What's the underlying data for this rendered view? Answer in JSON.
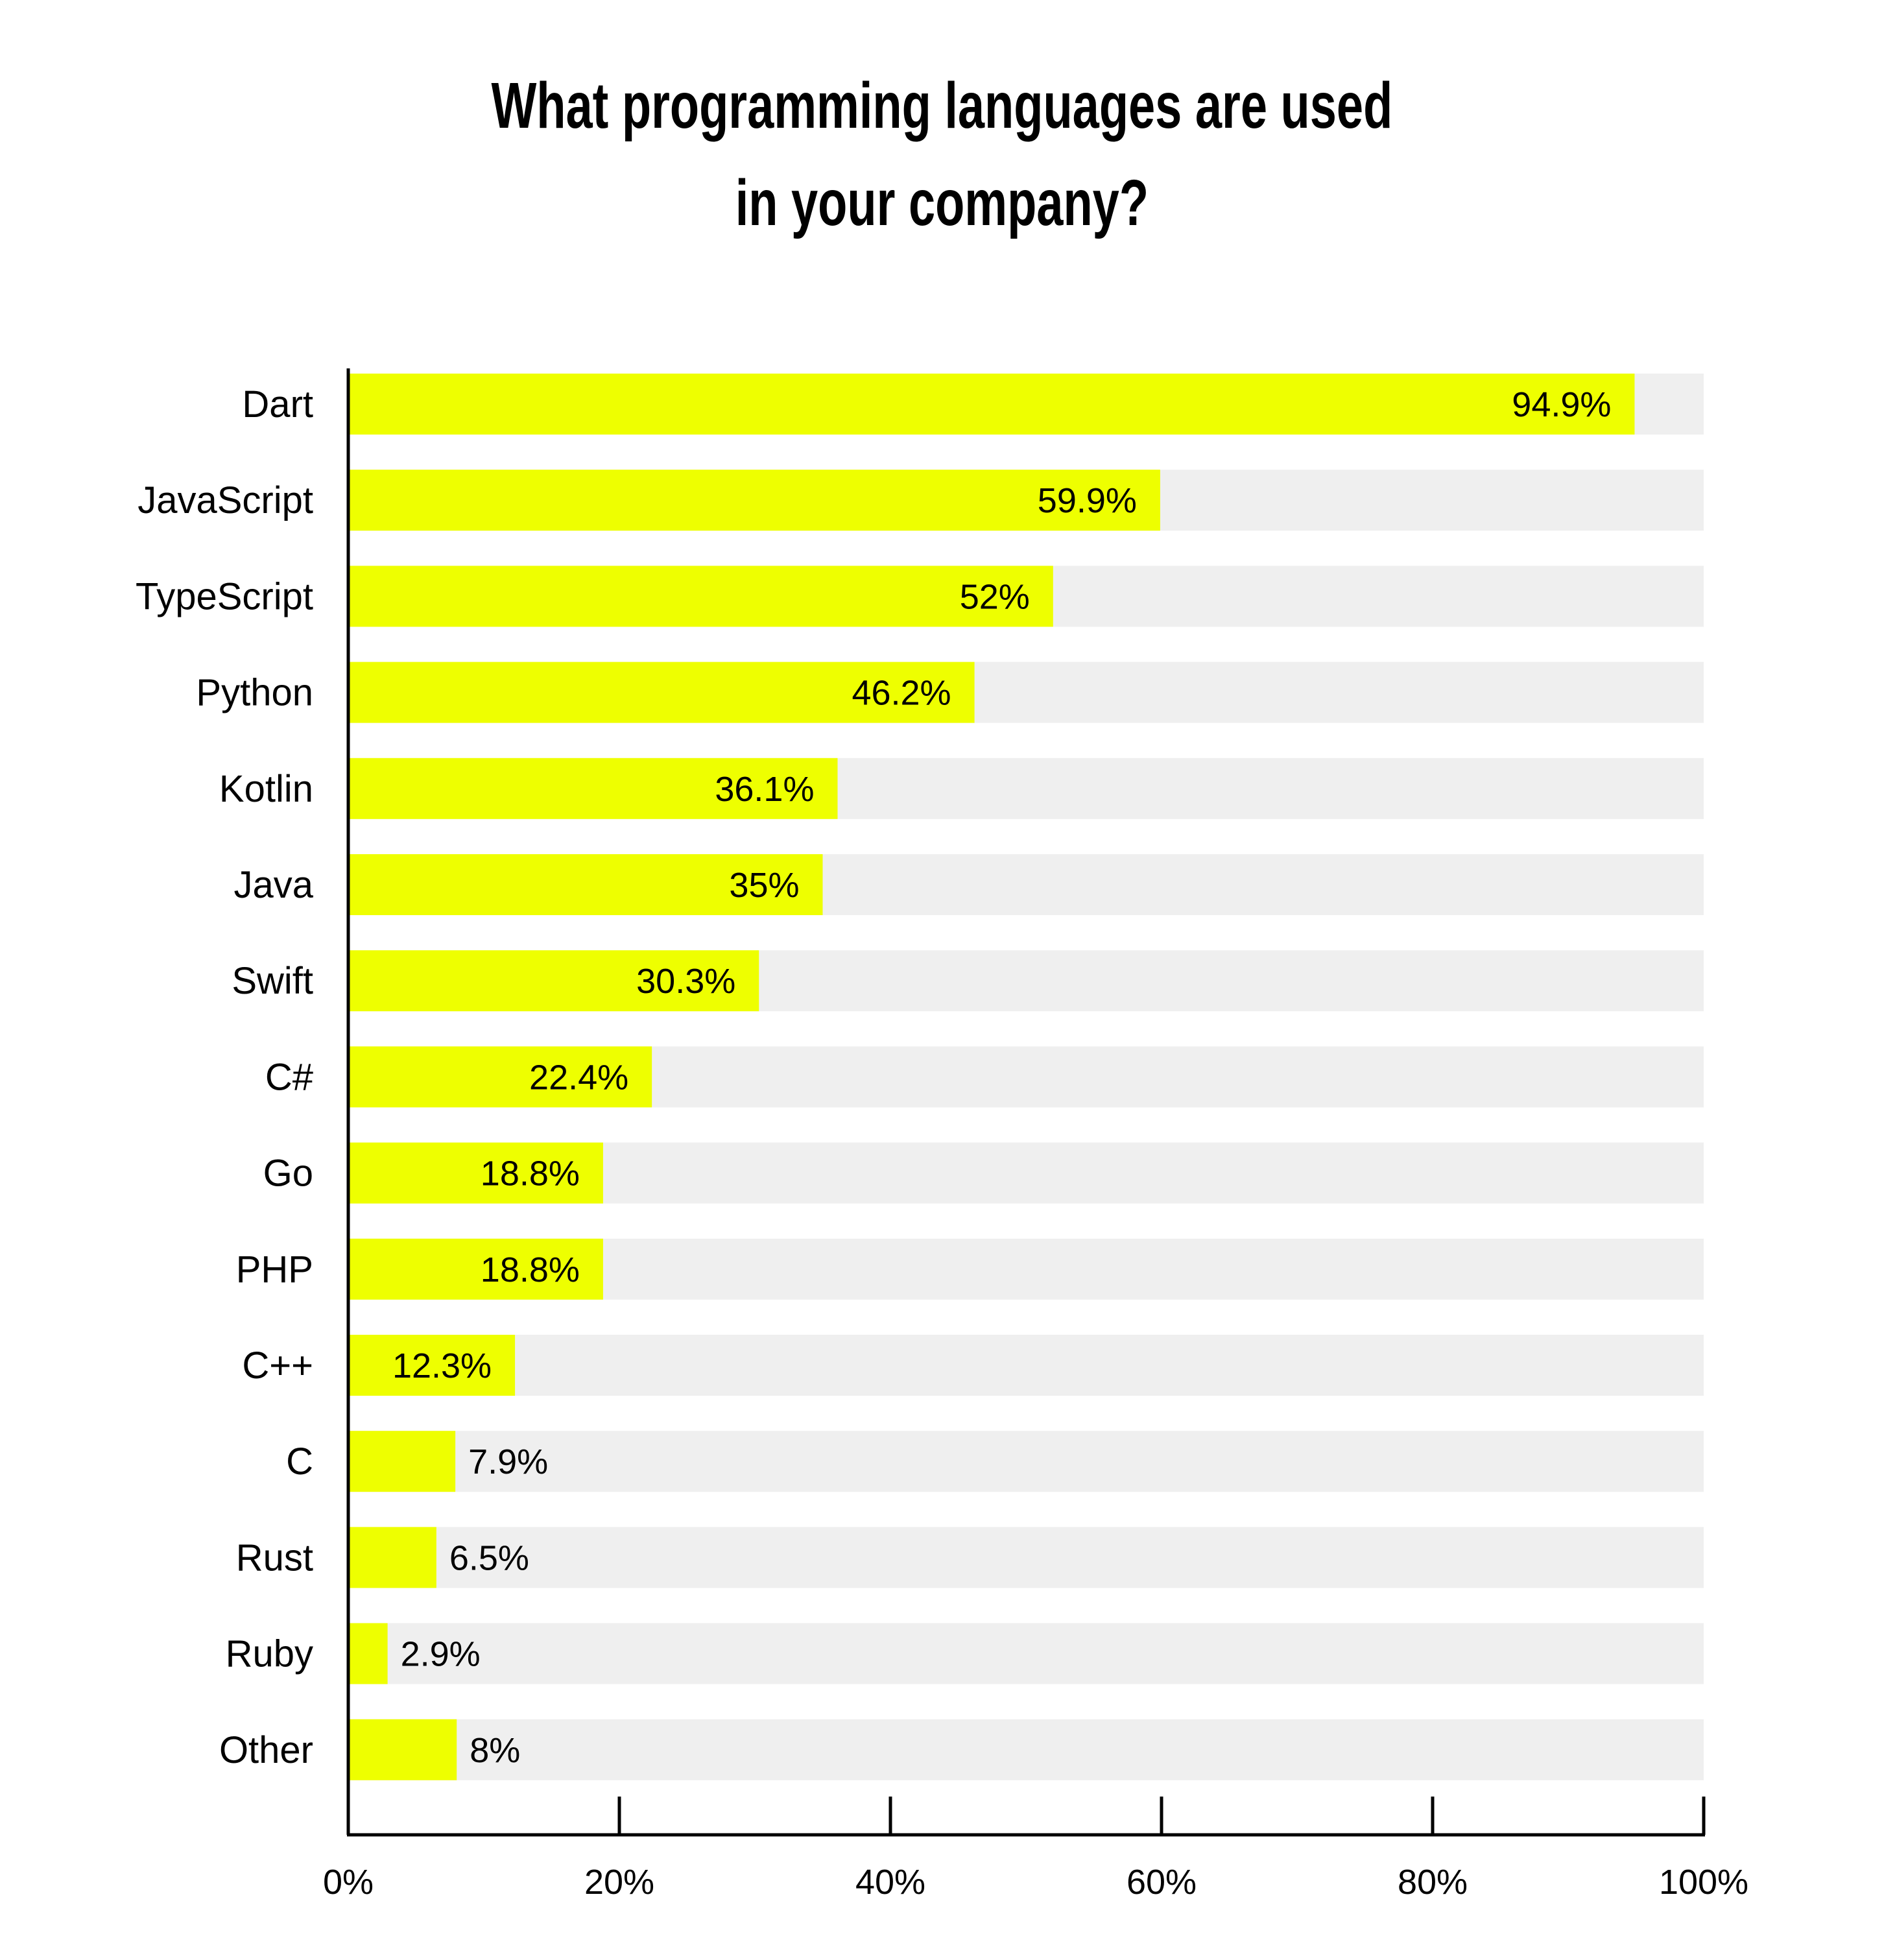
{
  "chart_data": {
    "type": "bar",
    "orientation": "horizontal",
    "title_lines": [
      "What programming languages are used",
      "in your company?"
    ],
    "categories": [
      "Dart",
      "JavaScript",
      "TypeScript",
      "Python",
      "Kotlin",
      "Java",
      "Swift",
      "C#",
      "Go",
      "PHP",
      "C++",
      "C",
      "Rust",
      "Ruby",
      "Other"
    ],
    "values": [
      94.9,
      59.9,
      52,
      46.2,
      36.1,
      35,
      30.3,
      22.4,
      18.8,
      18.8,
      12.3,
      7.9,
      6.5,
      2.9,
      8
    ],
    "value_labels": [
      "94.9%",
      "59.9%",
      "52%",
      "46.2%",
      "36.1%",
      "35%",
      "30.3%",
      "22.4%",
      "18.8%",
      "18.8%",
      "12.3%",
      "7.9%",
      "6.5%",
      "2.9%",
      "8%"
    ],
    "xlim": [
      0,
      100
    ],
    "x_ticks": [
      0,
      20,
      40,
      60,
      80,
      100
    ],
    "x_tick_labels": [
      "0%",
      "20%",
      "40%",
      "60%",
      "80%",
      "100%"
    ],
    "xlabel": "",
    "ylabel": "",
    "grid": false,
    "legend": "none",
    "colors": {
      "bar": "#eeff00",
      "track": "#efefef",
      "axis": "#000000",
      "text": "#000000"
    }
  }
}
